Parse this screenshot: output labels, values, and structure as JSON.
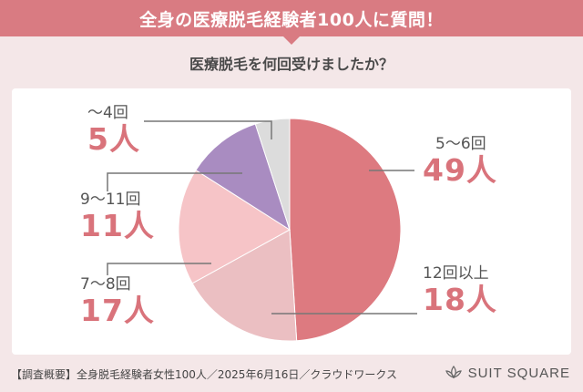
{
  "header": {
    "title": "全身の医療脱毛経験者100人に質問！",
    "question": "医療脱毛を何回受けましたか？"
  },
  "chart_data": {
    "type": "pie",
    "title": "医療脱毛を何回受けましたか？",
    "slices": [
      {
        "label": "5〜6回",
        "value": 49,
        "value_label": "49人",
        "color": "#dd7a80"
      },
      {
        "label": "12回以上",
        "value": 18,
        "value_label": "18人",
        "color": "#ebbfc2"
      },
      {
        "label": "7〜8回",
        "value": 17,
        "value_label": "17人",
        "color": "#f6c4c7"
      },
      {
        "label": "9〜11回",
        "value": 11,
        "value_label": "11人",
        "color": "#a98cc1"
      },
      {
        "label": "〜4回",
        "value": 5,
        "value_label": "5人",
        "color": "#dcdcdc"
      }
    ]
  },
  "footer": {
    "note": "【調査概要】全身脱毛経験者女性100人／2025年6月16日／クラウドワークス",
    "brand": "SUIT SQUARE",
    "brand_icon": "lotus-logo-icon"
  }
}
